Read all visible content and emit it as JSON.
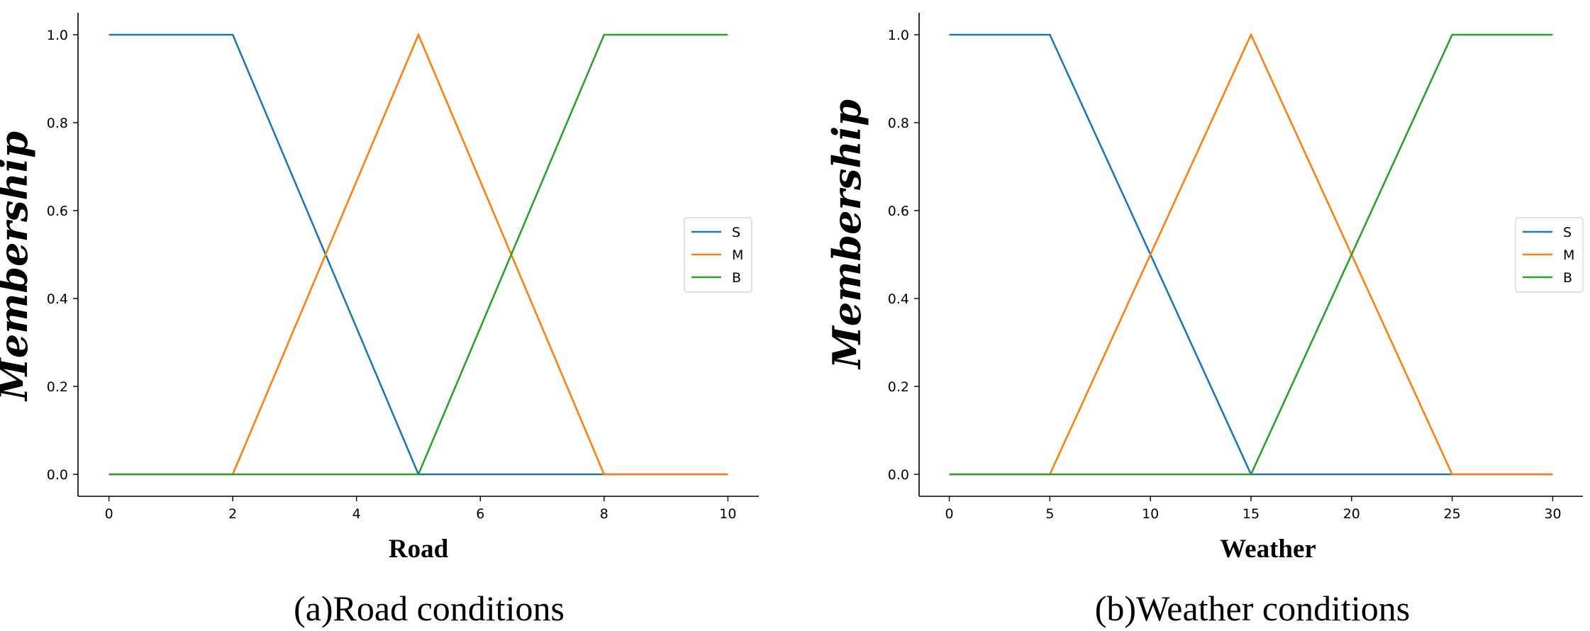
{
  "chart_data": [
    {
      "type": "line",
      "title": "",
      "caption": "(a)Road conditions",
      "xlabel": "Road",
      "ylabel": "Membership",
      "xlim": [
        -0.5,
        10.5
      ],
      "ylim": [
        -0.05,
        1.05
      ],
      "xticks": [
        0,
        2,
        4,
        6,
        8,
        10
      ],
      "yticks": [
        0.0,
        0.2,
        0.4,
        0.6,
        0.8,
        1.0
      ],
      "xtick_labels": [
        "0",
        "2",
        "4",
        "6",
        "8",
        "10"
      ],
      "ytick_labels": [
        "0.0",
        "0.2",
        "0.4",
        "0.6",
        "0.8",
        "1.0"
      ],
      "grid": false,
      "legend_position": "center-right",
      "series": [
        {
          "name": "S",
          "color": "#1f77b4",
          "x": [
            0,
            2,
            5,
            10
          ],
          "y": [
            1,
            1,
            0,
            0
          ]
        },
        {
          "name": "M",
          "color": "#ff7f0e",
          "x": [
            0,
            2,
            5,
            8,
            10
          ],
          "y": [
            0,
            0,
            1,
            0,
            0
          ]
        },
        {
          "name": "B",
          "color": "#2ca02c",
          "x": [
            0,
            5,
            8,
            10
          ],
          "y": [
            0,
            0,
            1,
            1
          ]
        }
      ]
    },
    {
      "type": "line",
      "title": "",
      "caption": "(b)Weather conditions",
      "xlabel": "Weather",
      "ylabel": "Membership",
      "xlim": [
        -1.5,
        31.5
      ],
      "ylim": [
        -0.05,
        1.05
      ],
      "xticks": [
        0,
        5,
        10,
        15,
        20,
        25,
        30
      ],
      "yticks": [
        0.0,
        0.2,
        0.4,
        0.6,
        0.8,
        1.0
      ],
      "xtick_labels": [
        "0",
        "5",
        "10",
        "15",
        "20",
        "25",
        "30"
      ],
      "ytick_labels": [
        "0.0",
        "0.2",
        "0.4",
        "0.6",
        "0.8",
        "1.0"
      ],
      "grid": false,
      "legend_position": "center-right",
      "series": [
        {
          "name": "S",
          "color": "#1f77b4",
          "x": [
            0,
            5,
            15,
            30
          ],
          "y": [
            1,
            1,
            0,
            0
          ]
        },
        {
          "name": "M",
          "color": "#ff7f0e",
          "x": [
            0,
            5,
            15,
            25,
            30
          ],
          "y": [
            0,
            0,
            1,
            0,
            0
          ]
        },
        {
          "name": "B",
          "color": "#2ca02c",
          "x": [
            0,
            15,
            25,
            30
          ],
          "y": [
            0,
            0,
            1,
            1
          ]
        }
      ]
    }
  ]
}
